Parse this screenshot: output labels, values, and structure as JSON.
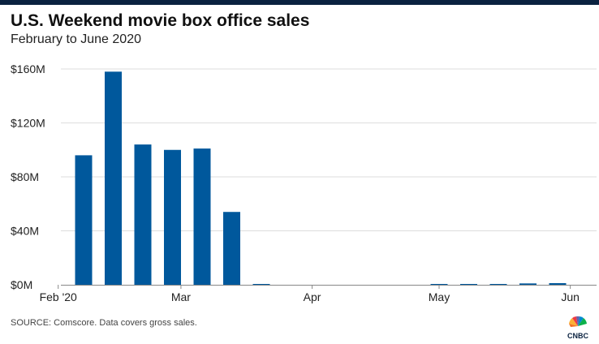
{
  "header": {
    "title": "U.S. Weekend movie box office sales",
    "subtitle": "February to June 2020"
  },
  "footer": {
    "source": "SOURCE: Comscore. Data covers gross sales.",
    "logo_text": "CNBC"
  },
  "colors": {
    "bar": "#00589c",
    "grid": "#dddddd",
    "axis": "#888888",
    "top_bar": "#0a2240"
  },
  "chart_data": {
    "type": "bar",
    "title": "U.S. Weekend movie box office sales",
    "subtitle": "February to June 2020",
    "xlabel": "",
    "ylabel": "",
    "x_tick_labels": [
      "Feb '20",
      "Mar",
      "Apr",
      "May",
      "Jun"
    ],
    "y_ticks": [
      0,
      40,
      80,
      120,
      160
    ],
    "y_tick_labels": [
      "$0M",
      "$40M",
      "$80M",
      "$120M",
      "$160M"
    ],
    "ylim": [
      0,
      160
    ],
    "units": "millions of dollars",
    "grid": true,
    "bars": [
      {
        "weekend": "2020-02-07",
        "value": 96
      },
      {
        "weekend": "2020-02-14",
        "value": 158
      },
      {
        "weekend": "2020-02-21",
        "value": 104
      },
      {
        "weekend": "2020-02-28",
        "value": 100
      },
      {
        "weekend": "2020-03-06",
        "value": 101
      },
      {
        "weekend": "2020-03-13",
        "value": 54
      },
      {
        "weekend": "2020-03-20",
        "value": 0.3
      },
      {
        "weekend": "2020-03-27",
        "value": 0
      },
      {
        "weekend": "2020-04-03",
        "value": 0
      },
      {
        "weekend": "2020-04-10",
        "value": 0
      },
      {
        "weekend": "2020-04-17",
        "value": 0
      },
      {
        "weekend": "2020-04-24",
        "value": 0
      },
      {
        "weekend": "2020-05-01",
        "value": 0.3
      },
      {
        "weekend": "2020-05-08",
        "value": 0.4
      },
      {
        "weekend": "2020-05-15",
        "value": 0.6
      },
      {
        "weekend": "2020-05-22",
        "value": 1.0
      },
      {
        "weekend": "2020-05-29",
        "value": 1.2
      }
    ]
  }
}
